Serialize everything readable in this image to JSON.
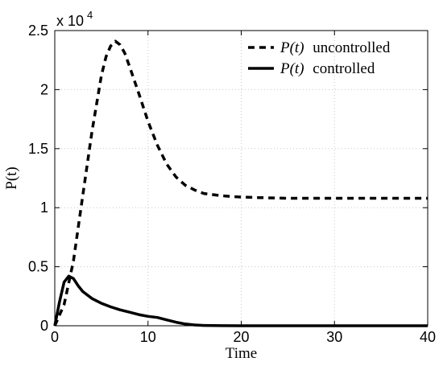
{
  "chart_data": {
    "type": "line",
    "xlabel": "Time",
    "ylabel": "P(t)",
    "xlim": [
      0,
      40
    ],
    "ylim": [
      0,
      25000
    ],
    "x_ticks": [
      0,
      10,
      20,
      30,
      40
    ],
    "x_tick_labels": [
      "0",
      "10",
      "20",
      "30",
      "40"
    ],
    "y_ticks": [
      0,
      5000,
      10000,
      15000,
      20000,
      25000
    ],
    "y_tick_labels": [
      "0",
      "0.5",
      "1",
      "1.5",
      "2",
      "2.5"
    ],
    "y_multiplier_base": "x 10",
    "y_multiplier_exp": "4",
    "grid": true,
    "legend_position": "top-right",
    "series": [
      {
        "name_math": "P(t)",
        "name_text": "uncontrolled",
        "style": "dashed",
        "color": "#000000",
        "x": [
          0,
          1,
          2,
          3,
          4,
          5,
          5.5,
          6,
          6.5,
          7,
          7.5,
          8,
          9,
          10,
          11,
          12,
          13,
          14,
          15,
          16,
          18,
          20,
          22,
          25,
          30,
          35,
          40
        ],
        "y": [
          0,
          1800,
          5500,
          11000,
          16500,
          21200,
          22800,
          23700,
          24100,
          23800,
          23100,
          22000,
          19700,
          17300,
          15300,
          13700,
          12600,
          11900,
          11500,
          11200,
          11000,
          10900,
          10850,
          10800,
          10800,
          10800,
          10800
        ]
      },
      {
        "name_math": "P(t)",
        "name_text": "controlled",
        "style": "solid",
        "color": "#000000",
        "x": [
          0,
          0.5,
          1,
          1.5,
          2,
          2.5,
          3,
          4,
          5,
          6,
          7,
          8,
          9,
          10,
          11,
          12,
          13,
          14,
          15,
          16,
          18,
          20,
          25,
          30,
          35,
          40
        ],
        "y": [
          0,
          2000,
          3700,
          4200,
          4000,
          3400,
          2900,
          2300,
          1900,
          1600,
          1350,
          1150,
          950,
          800,
          700,
          500,
          300,
          150,
          70,
          30,
          10,
          0,
          0,
          0,
          0,
          0
        ]
      }
    ]
  }
}
